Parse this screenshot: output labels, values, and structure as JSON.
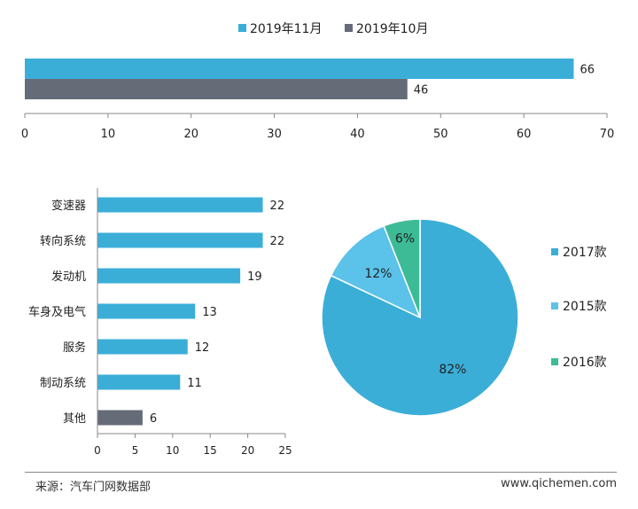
{
  "colors": {
    "blue": "#3BAED8",
    "gray": "#666B78",
    "light_blue": "#5BC2EA",
    "teal": "#3DBB97",
    "axis": "#888888"
  },
  "chart_data": [
    {
      "type": "bar",
      "orientation": "horizontal",
      "legend_position": "top",
      "series": [
        {
          "name": "2019年11月",
          "values": [
            66
          ],
          "color": "#3BAED8"
        },
        {
          "name": "2019年10月",
          "values": [
            46
          ],
          "color": "#666B78"
        }
      ],
      "xlim": [
        0,
        70
      ],
      "xticks": [
        0,
        10,
        20,
        30,
        40,
        50,
        60,
        70
      ],
      "data_labels": true
    },
    {
      "type": "bar",
      "orientation": "horizontal",
      "categories": [
        "变速器",
        "转向系统",
        "发动机",
        "车身及电气",
        "服务",
        "制动系统",
        "其他"
      ],
      "values": [
        22,
        22,
        19,
        13,
        12,
        11,
        6
      ],
      "bar_colors": [
        "#3BAED8",
        "#3BAED8",
        "#3BAED8",
        "#3BAED8",
        "#3BAED8",
        "#3BAED8",
        "#666B78"
      ],
      "xlim": [
        0,
        25
      ],
      "xticks": [
        0,
        5,
        10,
        15,
        20,
        25
      ],
      "data_labels": true
    },
    {
      "type": "pie",
      "legend_position": "right",
      "slices": [
        {
          "label": "2017款",
          "value": 82,
          "display": "82%",
          "color": "#3BAED8"
        },
        {
          "label": "2015款",
          "value": 12,
          "display": "12%",
          "color": "#5BC2EA"
        },
        {
          "label": "2016款",
          "value": 6,
          "display": "6%",
          "color": "#3DBB97"
        }
      ]
    }
  ],
  "footer": {
    "source": "来源：汽车门网数据部",
    "website": "www.qichemen.com"
  }
}
